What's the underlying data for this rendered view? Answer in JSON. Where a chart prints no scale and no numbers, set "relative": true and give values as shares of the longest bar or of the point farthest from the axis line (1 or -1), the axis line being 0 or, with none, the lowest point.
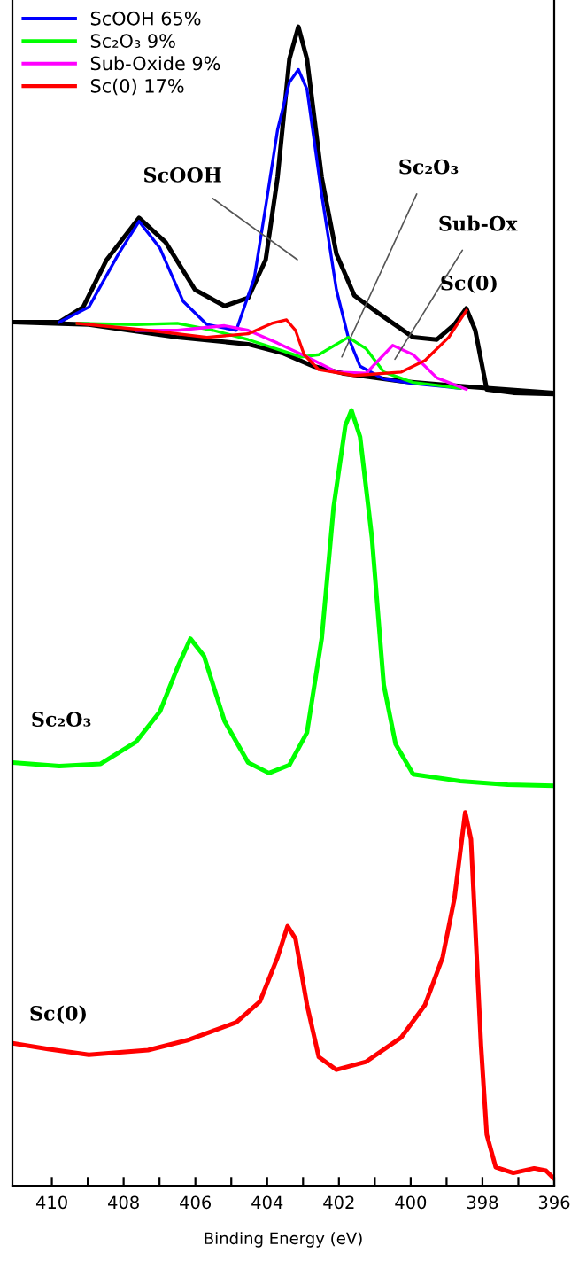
{
  "chart_data": {
    "type": "line",
    "relative": true,
    "xlabel": "Binding Energy (eV)",
    "xlim": [
      411.1,
      396
    ],
    "xticks": [
      410,
      {
        "value": 409,
        "label": null
      },
      408,
      {
        "value": 407,
        "label": null
      },
      406,
      {
        "value": 405,
        "label": null
      },
      404,
      {
        "value": 403,
        "label": null
      },
      402,
      {
        "value": 401,
        "label": null
      },
      400,
      {
        "value": 399,
        "label": null
      },
      398,
      {
        "value": 397,
        "label": null
      },
      396
    ],
    "legend": "top left",
    "grid": false,
    "marker": "none",
    "line_style": "solid",
    "series": [
      {
        "color": "#000000",
        "x": [
          411.1,
          409.8,
          409.13,
          408.47,
          407.57,
          406.83,
          406.01,
          405.19,
          404.53,
          404.04,
          403.71,
          403.38,
          403.13,
          402.89,
          402.48,
          402.07,
          401.57,
          400.91,
          399.93,
          399.27,
          398.78,
          398.45,
          398.2,
          397.88,
          397.14,
          396.0
        ],
        "values": [
          0.745,
          0.745,
          0.758,
          0.799,
          0.835,
          0.814,
          0.773,
          0.759,
          0.766,
          0.799,
          0.87,
          0.972,
          1.0,
          0.972,
          0.87,
          0.804,
          0.768,
          0.753,
          0.732,
          0.73,
          0.743,
          0.757,
          0.738,
          0.687,
          0.684,
          0.683
        ]
      },
      {
        "color": "#000000",
        "x": [
          411.1,
          408.97,
          406.5,
          404.53,
          403.54,
          402.72,
          401.9,
          400.26,
          398.29,
          396.0
        ],
        "values": [
          0.745,
          0.743,
          0.732,
          0.726,
          0.718,
          0.707,
          0.701,
          0.694,
          0.689,
          0.684
        ]
      },
      {
        "name": "ScOOH 65%",
        "color": "#0000ff",
        "x": [
          409.79,
          408.97,
          408.14,
          407.57,
          406.99,
          406.34,
          405.68,
          404.86,
          404.36,
          404.04,
          403.71,
          403.38,
          403.13,
          402.89,
          402.48,
          402.07,
          401.74,
          401.41,
          400.75,
          399.93,
          398.62
        ],
        "values": [
          0.745,
          0.758,
          0.804,
          0.832,
          0.809,
          0.763,
          0.743,
          0.738,
          0.783,
          0.845,
          0.911,
          0.952,
          0.963,
          0.946,
          0.855,
          0.773,
          0.732,
          0.707,
          0.696,
          0.692,
          0.688
        ]
      },
      {
        "name": "Sc₂O₃ 9%",
        "color": "#00ff00",
        "x": [
          409.29,
          407.65,
          406.5,
          405.51,
          404.53,
          403.54,
          403.05,
          402.56,
          401.74,
          401.24,
          400.75,
          399.93,
          398.62
        ],
        "values": [
          0.744,
          0.743,
          0.744,
          0.738,
          0.73,
          0.72,
          0.715,
          0.717,
          0.732,
          0.722,
          0.702,
          0.693,
          0.688
        ]
      },
      {
        "name": "Sub-Oxide 9%",
        "color": "#ff00ff",
        "x": [
          407.65,
          406.5,
          405.19,
          404.53,
          403.71,
          402.89,
          402.07,
          401.24,
          400.5,
          399.93,
          399.27,
          398.45
        ],
        "values": [
          0.738,
          0.738,
          0.742,
          0.738,
          0.727,
          0.715,
          0.702,
          0.701,
          0.725,
          0.717,
          0.697,
          0.687
        ]
      },
      {
        "name": "Sc(0) 17%",
        "color": "#ff0000",
        "x": [
          409.29,
          407.32,
          405.68,
          404.53,
          403.87,
          403.46,
          403.21,
          402.97,
          402.56,
          401.57,
          400.26,
          399.6,
          398.94,
          398.45
        ],
        "values": [
          0.744,
          0.738,
          0.732,
          0.735,
          0.744,
          0.747,
          0.738,
          0.717,
          0.704,
          0.699,
          0.702,
          0.712,
          0.732,
          0.755
        ]
      },
      {
        "color": "#00ff00",
        "x": [
          411.1,
          409.79,
          408.64,
          407.65,
          406.99,
          406.5,
          406.14,
          405.76,
          405.19,
          404.53,
          403.95,
          403.38,
          402.89,
          402.48,
          402.15,
          401.82,
          401.65,
          401.41,
          401.08,
          400.75,
          400.42,
          399.93,
          398.62,
          397.3,
          396.0
        ],
        "values": [
          0.365,
          0.362,
          0.364,
          0.383,
          0.409,
          0.447,
          0.472,
          0.457,
          0.401,
          0.365,
          0.356,
          0.363,
          0.391,
          0.472,
          0.585,
          0.656,
          0.669,
          0.646,
          0.559,
          0.432,
          0.381,
          0.355,
          0.349,
          0.346,
          0.345
        ]
      },
      {
        "color": "#ff0000",
        "x": [
          411.1,
          410.11,
          408.97,
          407.32,
          406.17,
          404.86,
          404.2,
          403.71,
          403.43,
          403.21,
          402.89,
          402.56,
          402.07,
          401.24,
          400.26,
          399.6,
          399.11,
          398.78,
          398.48,
          398.32,
          398.2,
          398.04,
          397.88,
          397.63,
          397.14,
          396.56,
          396.23,
          396.0
        ],
        "values": [
          0.123,
          0.118,
          0.113,
          0.117,
          0.126,
          0.141,
          0.159,
          0.197,
          0.224,
          0.213,
          0.156,
          0.111,
          0.1,
          0.107,
          0.128,
          0.156,
          0.197,
          0.248,
          0.322,
          0.299,
          0.223,
          0.121,
          0.044,
          0.016,
          0.011,
          0.015,
          0.013,
          0.006
        ]
      }
    ],
    "annotations": [
      "ScOOH",
      "Sc₂O₃",
      "Sub-Ox",
      "Sc(0)",
      "Sc₂O₃",
      "Sc(0)"
    ]
  }
}
